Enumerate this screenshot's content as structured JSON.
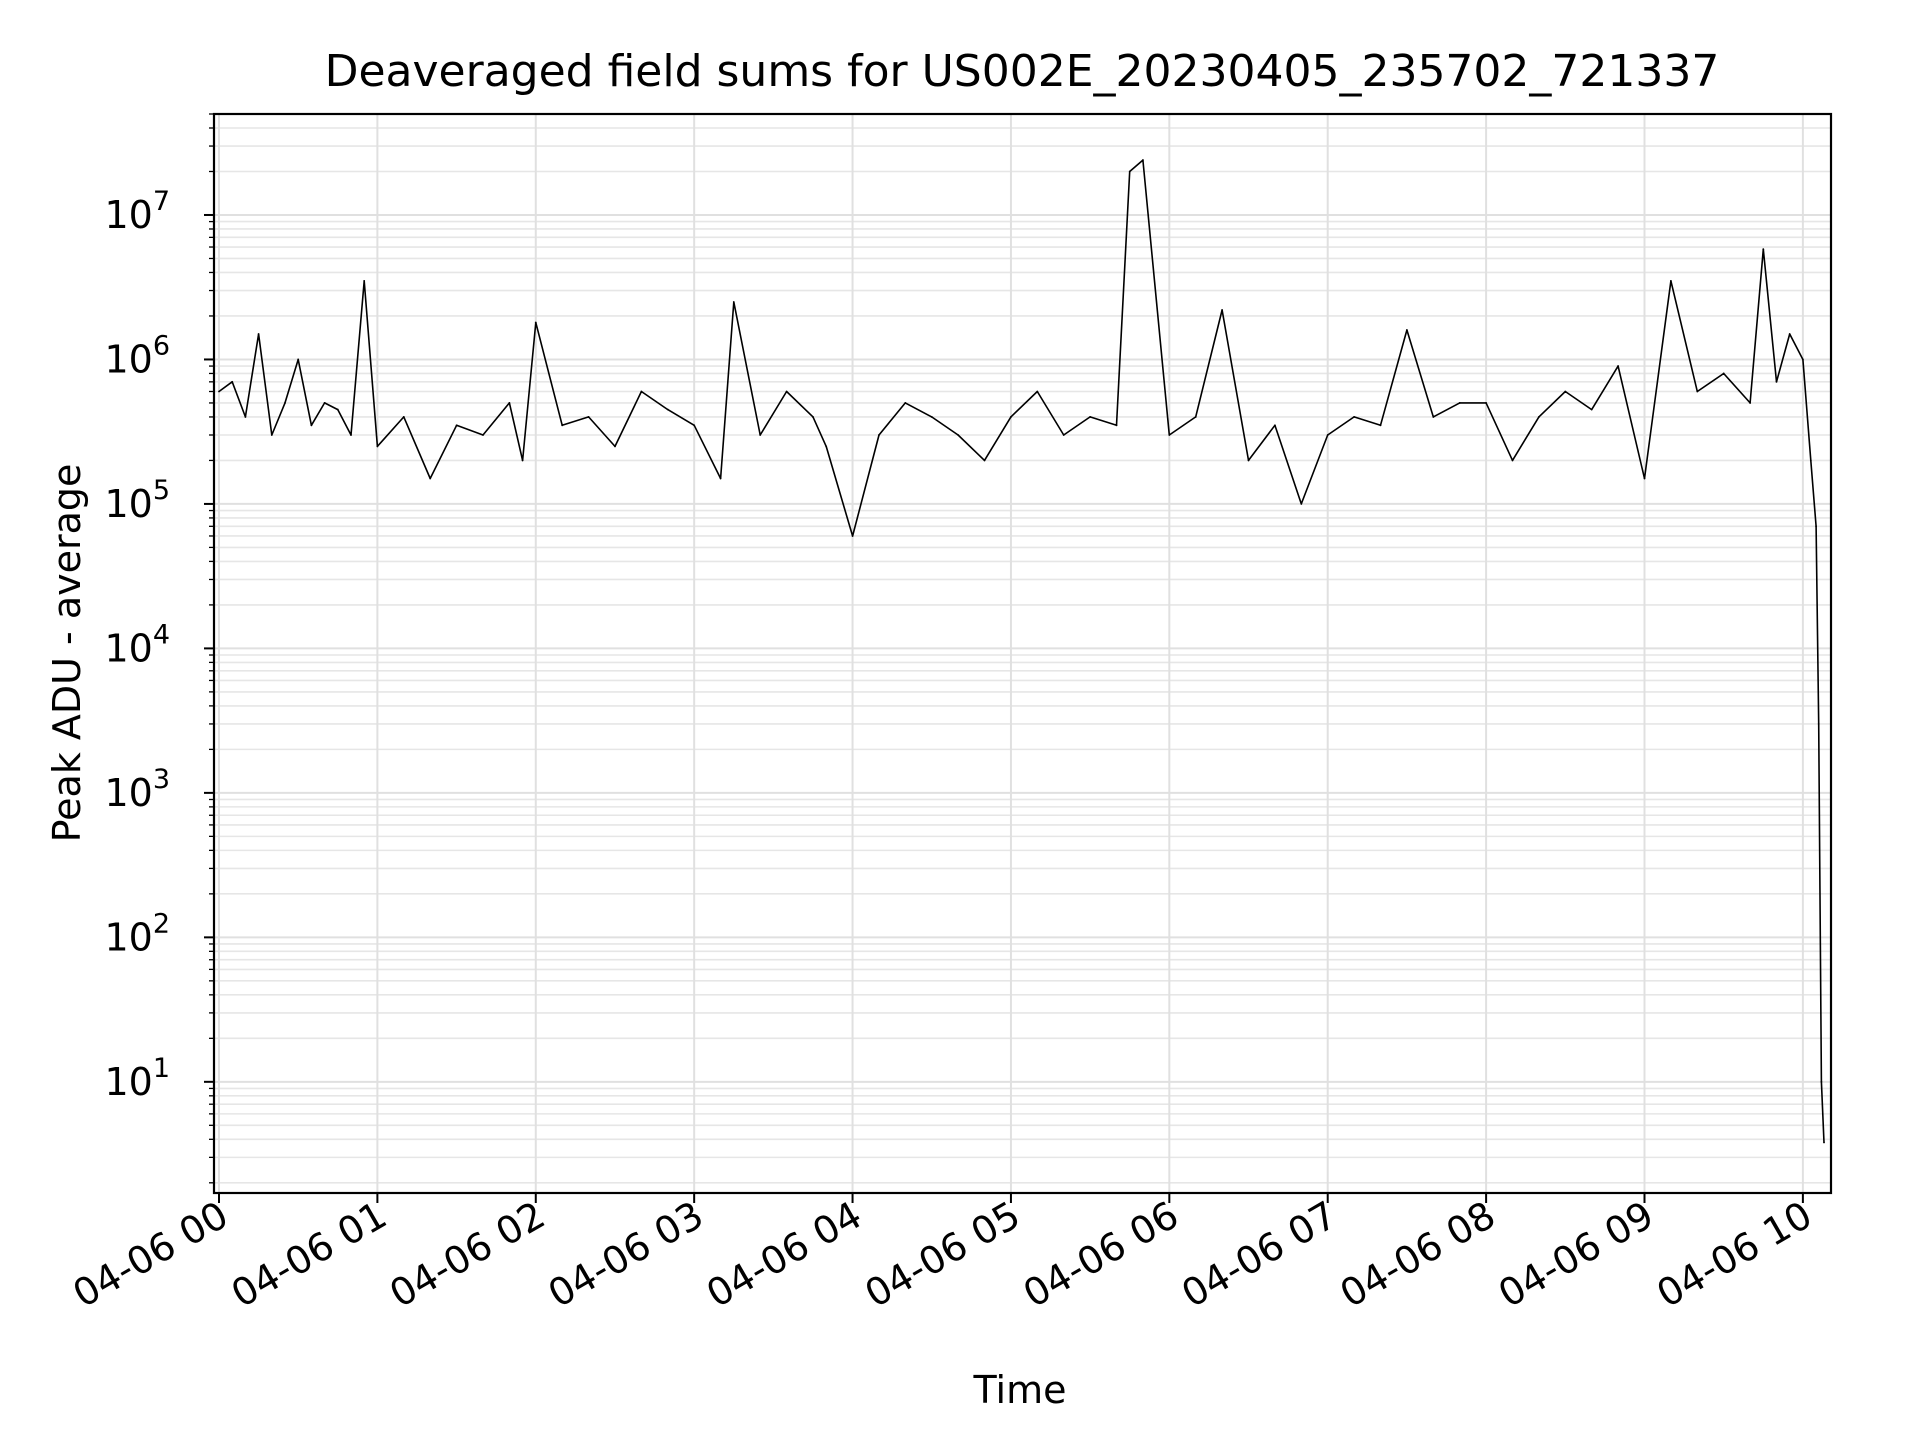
{
  "chart_data": {
    "type": "line",
    "title": "Deaveraged field sums for US002E_20230405_235702_721337",
    "xlabel": "Time",
    "ylabel": "Peak ADU - average",
    "y_scale": "log",
    "ylim": [
      1.7,
      50000000
    ],
    "xlim": [
      "2023-04-06 00:00",
      "2023-04-06 10:08"
    ],
    "grid": true,
    "x_ticks": [
      {
        "value": "2023-04-06 00:00",
        "label": "04-06 00"
      },
      {
        "value": "2023-04-06 01:00",
        "label": "04-06 01"
      },
      {
        "value": "2023-04-06 02:00",
        "label": "04-06 02"
      },
      {
        "value": "2023-04-06 03:00",
        "label": "04-06 03"
      },
      {
        "value": "2023-04-06 04:00",
        "label": "04-06 04"
      },
      {
        "value": "2023-04-06 05:00",
        "label": "04-06 05"
      },
      {
        "value": "2023-04-06 06:00",
        "label": "04-06 06"
      },
      {
        "value": "2023-04-06 07:00",
        "label": "04-06 07"
      },
      {
        "value": "2023-04-06 08:00",
        "label": "04-06 08"
      },
      {
        "value": "2023-04-06 09:00",
        "label": "04-06 09"
      },
      {
        "value": "2023-04-06 10:00",
        "label": "04-06 10"
      }
    ],
    "y_ticks": [
      {
        "value": 10,
        "base": "10",
        "exp": "1"
      },
      {
        "value": 100,
        "base": "10",
        "exp": "2"
      },
      {
        "value": 1000,
        "base": "10",
        "exp": "3"
      },
      {
        "value": 10000,
        "base": "10",
        "exp": "4"
      },
      {
        "value": 100000,
        "base": "10",
        "exp": "5"
      },
      {
        "value": 1000000,
        "base": "10",
        "exp": "6"
      },
      {
        "value": 10000000,
        "base": "10",
        "exp": "7"
      }
    ],
    "series": [
      {
        "color": "#000000",
        "x": [
          "2023-04-06 00:00",
          "2023-04-06 00:05",
          "2023-04-06 00:10",
          "2023-04-06 00:15",
          "2023-04-06 00:20",
          "2023-04-06 00:25",
          "2023-04-06 00:30",
          "2023-04-06 00:35",
          "2023-04-06 00:40",
          "2023-04-06 00:45",
          "2023-04-06 00:50",
          "2023-04-06 00:55",
          "2023-04-06 01:00",
          "2023-04-06 01:10",
          "2023-04-06 01:20",
          "2023-04-06 01:30",
          "2023-04-06 01:40",
          "2023-04-06 01:50",
          "2023-04-06 01:55",
          "2023-04-06 02:00",
          "2023-04-06 02:10",
          "2023-04-06 02:20",
          "2023-04-06 02:30",
          "2023-04-06 02:40",
          "2023-04-06 02:50",
          "2023-04-06 03:00",
          "2023-04-06 03:10",
          "2023-04-06 03:15",
          "2023-04-06 03:25",
          "2023-04-06 03:35",
          "2023-04-06 03:45",
          "2023-04-06 03:50",
          "2023-04-06 04:00",
          "2023-04-06 04:10",
          "2023-04-06 04:20",
          "2023-04-06 04:30",
          "2023-04-06 04:40",
          "2023-04-06 04:50",
          "2023-04-06 05:00",
          "2023-04-06 05:10",
          "2023-04-06 05:20",
          "2023-04-06 05:30",
          "2023-04-06 05:40",
          "2023-04-06 05:45",
          "2023-04-06 05:50",
          "2023-04-06 06:00",
          "2023-04-06 06:10",
          "2023-04-06 06:20",
          "2023-04-06 06:30",
          "2023-04-06 06:40",
          "2023-04-06 06:50",
          "2023-04-06 07:00",
          "2023-04-06 07:10",
          "2023-04-06 07:20",
          "2023-04-06 07:30",
          "2023-04-06 07:40",
          "2023-04-06 07:50",
          "2023-04-06 08:00",
          "2023-04-06 08:10",
          "2023-04-06 08:20",
          "2023-04-06 08:30",
          "2023-04-06 08:40",
          "2023-04-06 08:50",
          "2023-04-06 09:00",
          "2023-04-06 09:10",
          "2023-04-06 09:20",
          "2023-04-06 09:30",
          "2023-04-06 09:40",
          "2023-04-06 09:45",
          "2023-04-06 09:50",
          "2023-04-06 09:55",
          "2023-04-06 10:00",
          "2023-04-06 10:03",
          "2023-04-06 10:05",
          "2023-04-06 10:06",
          "2023-04-06 10:07",
          "2023-04-06 10:08"
        ],
        "y": [
          600000,
          700000,
          400000,
          1500000,
          300000,
          500000,
          1000000,
          350000,
          500000,
          450000,
          300000,
          3500000,
          250000,
          400000,
          150000,
          350000,
          300000,
          500000,
          200000,
          1800000,
          350000,
          400000,
          250000,
          600000,
          450000,
          350000,
          150000,
          2500000,
          300000,
          600000,
          400000,
          250000,
          60000,
          300000,
          500000,
          400000,
          300000,
          200000,
          400000,
          600000,
          300000,
          400000,
          350000,
          20000000,
          24000000,
          300000,
          400000,
          2200000,
          200000,
          350000,
          100000,
          300000,
          400000,
          350000,
          1600000,
          400000,
          500000,
          500000,
          200000,
          400000,
          600000,
          450000,
          900000,
          150000,
          3500000,
          600000,
          800000,
          500000,
          5800000,
          700000,
          1500000,
          1000000,
          200000,
          70000,
          3000,
          10,
          3.8
        ]
      }
    ]
  }
}
